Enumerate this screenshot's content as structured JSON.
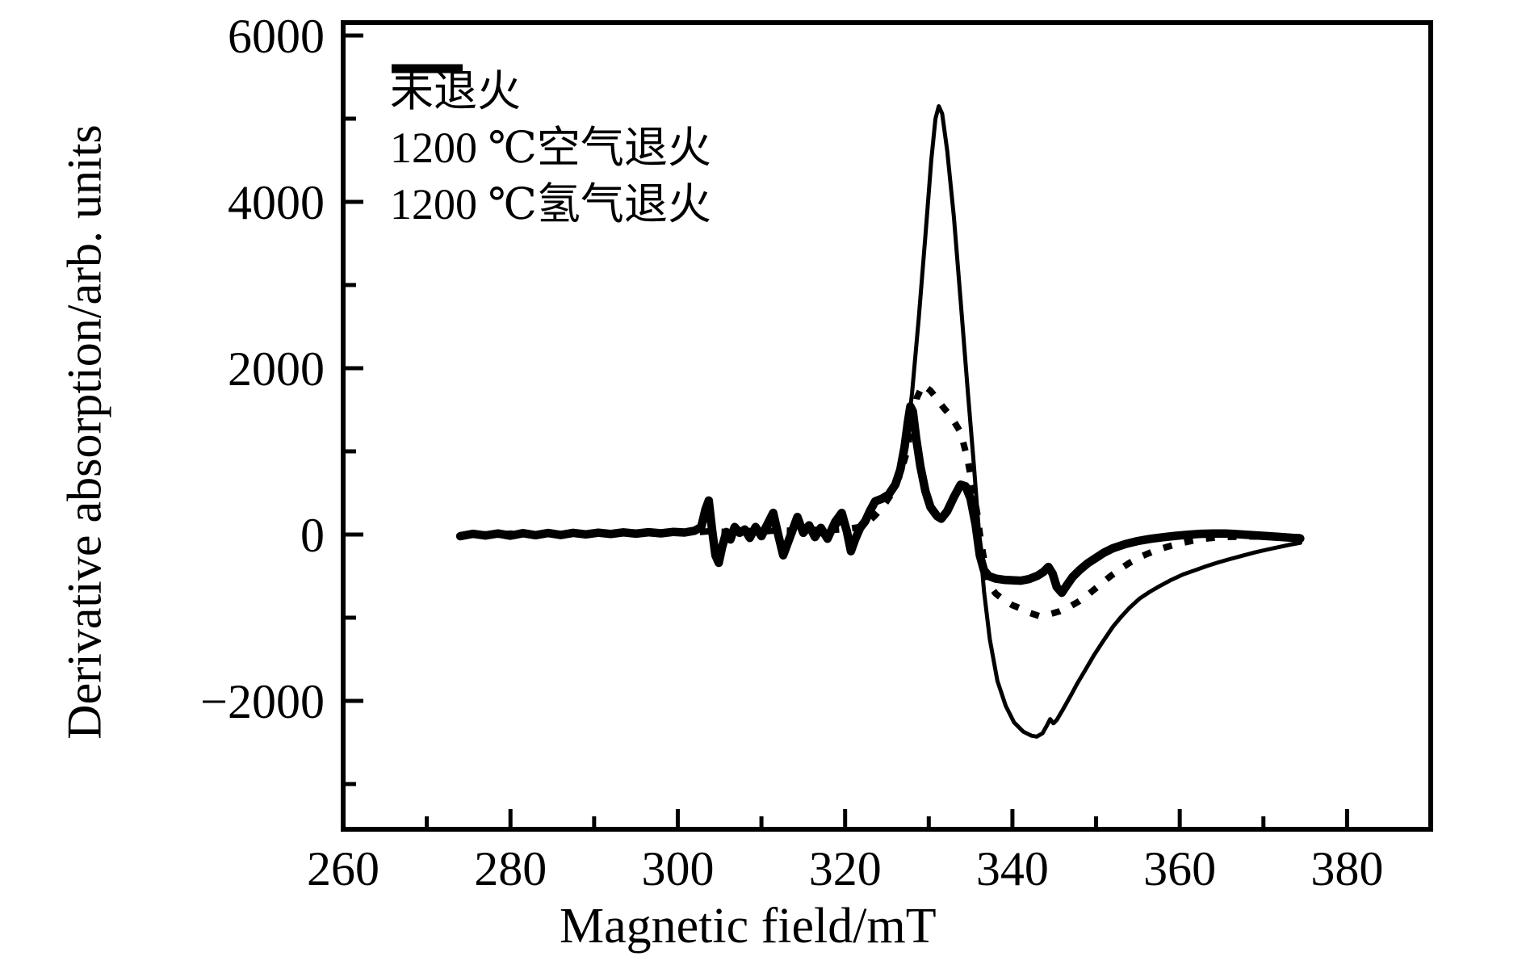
{
  "figure": {
    "background": "#ffffff",
    "ink": "#000000"
  },
  "axes": {
    "x_title": "Magnetic field/mT",
    "y_title": "Derivative absorption/arb. units",
    "x_tick_labels": [
      "260",
      "280",
      "300",
      "320",
      "340",
      "360",
      "380"
    ],
    "y_tick_labels": [
      "6000",
      "4000",
      "2000",
      "0",
      "−2000"
    ]
  },
  "legend": {
    "position": "top-left",
    "items": [
      {
        "label": "未退火",
        "sample": "dotted-line"
      },
      {
        "label": "1200 ℃空气退火",
        "sample": "thick-solid-line"
      },
      {
        "label": "1200 ℃氢气退火",
        "sample": "thin-solid-line"
      }
    ]
  },
  "chart_data": {
    "type": "line",
    "title": "",
    "xlabel": "Magnetic field/mT",
    "ylabel": "Derivative absorption/arb. units",
    "xlim": [
      260,
      390
    ],
    "ylim": [
      -3544,
      6155
    ],
    "grid": false,
    "legend_position": "top-left",
    "x_major_ticks": [
      260,
      280,
      300,
      320,
      340,
      360,
      380
    ],
    "x_minor_ticks": [
      270,
      290,
      310,
      330,
      350,
      370
    ],
    "y_major_ticks": [
      6000,
      4000,
      2000,
      0,
      -2000
    ],
    "y_minor_ticks": [
      5000,
      3000,
      1000,
      -1000,
      -3000
    ],
    "series": [
      {
        "key": "air_annealed",
        "name": "1200 ℃空气退火",
        "style": "solid-thick",
        "stroke_width": 10.5,
        "points": [
          [
            274,
            -20
          ],
          [
            275.5,
            8
          ],
          [
            277,
            -12
          ],
          [
            278.5,
            12
          ],
          [
            280,
            -14
          ],
          [
            281.5,
            16
          ],
          [
            283,
            -8
          ],
          [
            284.5,
            18
          ],
          [
            286,
            -6
          ],
          [
            287.5,
            20
          ],
          [
            289,
            2
          ],
          [
            290.5,
            22
          ],
          [
            292,
            6
          ],
          [
            293.5,
            26
          ],
          [
            295,
            10
          ],
          [
            296.5,
            28
          ],
          [
            298,
            14
          ],
          [
            299.5,
            32
          ],
          [
            300.8,
            24
          ],
          [
            302,
            45
          ],
          [
            302.8,
            90
          ],
          [
            303.3,
            300
          ],
          [
            303.7,
            408
          ],
          [
            304.1,
            60
          ],
          [
            304.5,
            -250
          ],
          [
            304.9,
            -340
          ],
          [
            305.3,
            -150
          ],
          [
            305.8,
            30
          ],
          [
            306.3,
            -60
          ],
          [
            306.8,
            90
          ],
          [
            307.4,
            20
          ],
          [
            308,
            60
          ],
          [
            308.6,
            -40
          ],
          [
            309.3,
            90
          ],
          [
            310,
            -20
          ],
          [
            310.7,
            120
          ],
          [
            311.4,
            260
          ],
          [
            312,
            0
          ],
          [
            312.6,
            -250
          ],
          [
            313.3,
            -60
          ],
          [
            314.3,
            210
          ],
          [
            315,
            20
          ],
          [
            315.7,
            110
          ],
          [
            316.4,
            -30
          ],
          [
            317.1,
            80
          ],
          [
            317.9,
            -50
          ],
          [
            318.8,
            150
          ],
          [
            319.6,
            260
          ],
          [
            320.2,
            40
          ],
          [
            320.7,
            -200
          ],
          [
            321.2,
            -60
          ],
          [
            321.8,
            80
          ],
          [
            322.4,
            160
          ],
          [
            323,
            290
          ],
          [
            323.6,
            400
          ],
          [
            324.4,
            430
          ],
          [
            325.2,
            480
          ],
          [
            326,
            600
          ],
          [
            326.6,
            780
          ],
          [
            327.1,
            1050
          ],
          [
            327.5,
            1350
          ],
          [
            327.8,
            1540
          ],
          [
            328.1,
            1480
          ],
          [
            328.5,
            1150
          ],
          [
            329,
            820
          ],
          [
            329.6,
            520
          ],
          [
            330.2,
            330
          ],
          [
            331,
            220
          ],
          [
            331.5,
            190
          ],
          [
            332.2,
            280
          ],
          [
            333,
            450
          ],
          [
            333.8,
            600
          ],
          [
            334.4,
            580
          ],
          [
            335,
            430
          ],
          [
            335.6,
            120
          ],
          [
            336.1,
            -250
          ],
          [
            336.6,
            -430
          ],
          [
            337.2,
            -500
          ],
          [
            338,
            -530
          ],
          [
            339,
            -545
          ],
          [
            340,
            -550
          ],
          [
            341,
            -555
          ],
          [
            342,
            -535
          ],
          [
            343,
            -495
          ],
          [
            343.7,
            -450
          ],
          [
            344.3,
            -390
          ],
          [
            344.8,
            -470
          ],
          [
            345.3,
            -630
          ],
          [
            345.9,
            -700
          ],
          [
            346.5,
            -610
          ],
          [
            347.2,
            -510
          ],
          [
            348,
            -430
          ],
          [
            349,
            -345
          ],
          [
            350,
            -280
          ],
          [
            351,
            -215
          ],
          [
            352,
            -165
          ],
          [
            353.5,
            -115
          ],
          [
            355,
            -78
          ],
          [
            356.5,
            -52
          ],
          [
            358,
            -32
          ],
          [
            359.5,
            -16
          ],
          [
            361,
            -2
          ],
          [
            362.5,
            8
          ],
          [
            364,
            12
          ],
          [
            365.5,
            12
          ],
          [
            367,
            4
          ],
          [
            368.5,
            -6
          ],
          [
            370,
            -16
          ],
          [
            371.5,
            -26
          ],
          [
            373,
            -36
          ],
          [
            374.4,
            -48
          ]
        ]
      },
      {
        "key": "hydrogen_annealed",
        "name": "1200 ℃氢气退火",
        "style": "solid-thin",
        "stroke_width": 5,
        "points": [
          [
            274,
            -12
          ],
          [
            275.5,
            4
          ],
          [
            277,
            -8
          ],
          [
            278.5,
            8
          ],
          [
            280,
            -8
          ],
          [
            281.5,
            10
          ],
          [
            283,
            -4
          ],
          [
            284.5,
            12
          ],
          [
            286,
            -2
          ],
          [
            287.5,
            12
          ],
          [
            289,
            2
          ],
          [
            290.5,
            14
          ],
          [
            292,
            4
          ],
          [
            293.5,
            16
          ],
          [
            295,
            6
          ],
          [
            296.5,
            18
          ],
          [
            298,
            8
          ],
          [
            299.5,
            20
          ],
          [
            300.8,
            16
          ],
          [
            302,
            30
          ],
          [
            302.8,
            60
          ],
          [
            303.3,
            170
          ],
          [
            303.7,
            240
          ],
          [
            304.1,
            30
          ],
          [
            304.5,
            -150
          ],
          [
            304.9,
            -200
          ],
          [
            305.3,
            -90
          ],
          [
            305.8,
            15
          ],
          [
            306.3,
            -35
          ],
          [
            306.8,
            50
          ],
          [
            307.4,
            12
          ],
          [
            308,
            35
          ],
          [
            308.6,
            -20
          ],
          [
            309.3,
            50
          ],
          [
            310,
            -10
          ],
          [
            310.7,
            70
          ],
          [
            311.4,
            150
          ],
          [
            312,
            0
          ],
          [
            312.6,
            -140
          ],
          [
            313.3,
            -35
          ],
          [
            314.3,
            120
          ],
          [
            315,
            12
          ],
          [
            315.7,
            60
          ],
          [
            316.4,
            -18
          ],
          [
            317.1,
            45
          ],
          [
            317.9,
            -28
          ],
          [
            318.8,
            90
          ],
          [
            319.6,
            150
          ],
          [
            320.2,
            25
          ],
          [
            320.7,
            -110
          ],
          [
            321.2,
            -25
          ],
          [
            321.8,
            70
          ],
          [
            322.4,
            180
          ],
          [
            323.2,
            310
          ],
          [
            324,
            420
          ],
          [
            324.8,
            460
          ],
          [
            325.6,
            540
          ],
          [
            326.4,
            700
          ],
          [
            327.2,
            1020
          ],
          [
            328,
            1700
          ],
          [
            328.8,
            2600
          ],
          [
            329.6,
            3600
          ],
          [
            330.3,
            4500
          ],
          [
            330.8,
            5000
          ],
          [
            331.2,
            5150
          ],
          [
            331.6,
            5060
          ],
          [
            332.2,
            4620
          ],
          [
            333,
            3820
          ],
          [
            333.8,
            2820
          ],
          [
            334.6,
            1800
          ],
          [
            335.4,
            820
          ],
          [
            336,
            30
          ],
          [
            336.6,
            -680
          ],
          [
            337.3,
            -1260
          ],
          [
            338.2,
            -1760
          ],
          [
            339.2,
            -2060
          ],
          [
            340.2,
            -2260
          ],
          [
            341.3,
            -2370
          ],
          [
            342.3,
            -2420
          ],
          [
            342.9,
            -2430
          ],
          [
            343.6,
            -2390
          ],
          [
            344.1,
            -2300
          ],
          [
            344.5,
            -2220
          ],
          [
            344.9,
            -2270
          ],
          [
            345.3,
            -2230
          ],
          [
            346,
            -2110
          ],
          [
            347,
            -1930
          ],
          [
            347.7,
            -1800
          ],
          [
            348.7,
            -1630
          ],
          [
            349.7,
            -1460
          ],
          [
            350.8,
            -1290
          ],
          [
            352,
            -1110
          ],
          [
            353,
            -990
          ],
          [
            354,
            -880
          ],
          [
            355.2,
            -770
          ],
          [
            356.4,
            -690
          ],
          [
            357.6,
            -620
          ],
          [
            359,
            -545
          ],
          [
            360.4,
            -480
          ],
          [
            361.8,
            -430
          ],
          [
            363.2,
            -380
          ],
          [
            364.6,
            -335
          ],
          [
            366,
            -295
          ],
          [
            367.5,
            -255
          ],
          [
            369,
            -215
          ],
          [
            370.5,
            -180
          ],
          [
            372,
            -148
          ],
          [
            373.2,
            -122
          ],
          [
            374.4,
            -100
          ]
        ]
      },
      {
        "key": "unannealed",
        "name": "未退火",
        "style": "dotted",
        "stroke_width": 8,
        "dash": "11 16",
        "points": [
          [
            274,
            -8
          ],
          [
            276,
            6
          ],
          [
            278,
            -4
          ],
          [
            280,
            10
          ],
          [
            282,
            2
          ],
          [
            284,
            14
          ],
          [
            286,
            4
          ],
          [
            288,
            16
          ],
          [
            290,
            8
          ],
          [
            292,
            20
          ],
          [
            294,
            10
          ],
          [
            296,
            24
          ],
          [
            298,
            16
          ],
          [
            300,
            30
          ],
          [
            302,
            26
          ],
          [
            304,
            40
          ],
          [
            306,
            30
          ],
          [
            308,
            44
          ],
          [
            310,
            36
          ],
          [
            312,
            50
          ],
          [
            314,
            44
          ],
          [
            316,
            58
          ],
          [
            318,
            52
          ],
          [
            320,
            66
          ],
          [
            321.5,
            85
          ],
          [
            322.5,
            130
          ],
          [
            323.5,
            220
          ],
          [
            324.5,
            330
          ],
          [
            325.5,
            480
          ],
          [
            326.5,
            700
          ],
          [
            327.4,
            1000
          ],
          [
            328,
            1350
          ],
          [
            328.6,
            1650
          ],
          [
            329.3,
            1800
          ],
          [
            330.2,
            1730
          ],
          [
            330.9,
            1640
          ],
          [
            331.8,
            1520
          ],
          [
            332.6,
            1430
          ],
          [
            333.8,
            1230
          ],
          [
            334.6,
            920
          ],
          [
            335.2,
            600
          ],
          [
            335.8,
            250
          ],
          [
            336.2,
            -60
          ],
          [
            336.7,
            -350
          ],
          [
            337.1,
            -590
          ],
          [
            338,
            -710
          ],
          [
            339,
            -790
          ],
          [
            340,
            -850
          ],
          [
            341,
            -890
          ],
          [
            342,
            -940
          ],
          [
            343.2,
            -980
          ],
          [
            344.4,
            -960
          ],
          [
            345.6,
            -925
          ],
          [
            346.8,
            -870
          ],
          [
            348,
            -800
          ],
          [
            349.2,
            -710
          ],
          [
            350.4,
            -610
          ],
          [
            351.6,
            -510
          ],
          [
            352.8,
            -420
          ],
          [
            354,
            -340
          ],
          [
            355.5,
            -260
          ],
          [
            357,
            -195
          ],
          [
            358.5,
            -148
          ],
          [
            360,
            -108
          ],
          [
            361.5,
            -75
          ],
          [
            363,
            -50
          ],
          [
            364.5,
            -35
          ],
          [
            366,
            -28
          ],
          [
            368,
            -24
          ],
          [
            370,
            -26
          ],
          [
            372,
            -30
          ],
          [
            374.4,
            -32
          ]
        ]
      }
    ]
  }
}
